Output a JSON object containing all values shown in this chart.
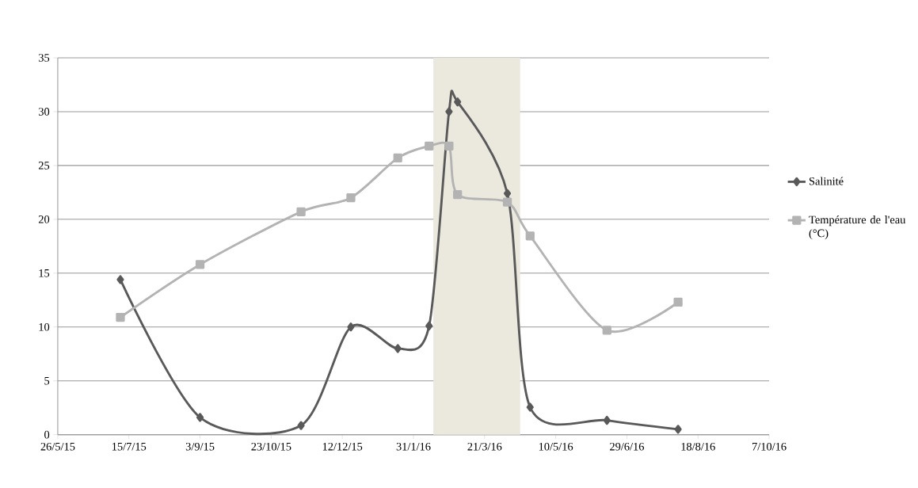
{
  "chart_data": {
    "type": "line",
    "x": [
      "2015-07-09",
      "2015-09-03",
      "2015-11-13",
      "2015-12-18",
      "2016-01-20",
      "2016-02-11",
      "2016-02-25",
      "2016-03-02",
      "2016-04-06",
      "2016-04-22",
      "2016-06-15",
      "2016-08-04"
    ],
    "series": [
      {
        "name": "Salinité",
        "color": "#595959",
        "marker": "diamond",
        "values": [
          14.4,
          1.6,
          0.85,
          10.0,
          8.0,
          10.1,
          30.0,
          30.9,
          22.4,
          2.55,
          1.33,
          0.5
        ]
      },
      {
        "name": "Température de l'eau (°C)",
        "color": "#b3b3b3",
        "marker": "square",
        "values": [
          10.9,
          15.8,
          20.7,
          22.0,
          25.7,
          26.8,
          26.8,
          22.3,
          21.6,
          18.45,
          9.7,
          12.3
        ]
      }
    ],
    "xlim": [
      "2015-05-26",
      "2016-10-07"
    ],
    "xticks": [
      {
        "value": "2015-05-26",
        "label": "26/5/15"
      },
      {
        "value": "2015-07-15",
        "label": "15/7/15"
      },
      {
        "value": "2015-09-03",
        "label": "3/9/15"
      },
      {
        "value": "2015-10-23",
        "label": "23/10/15"
      },
      {
        "value": "2015-12-12",
        "label": "12/12/15"
      },
      {
        "value": "2016-01-31",
        "label": "31/1/16"
      },
      {
        "value": "2016-03-21",
        "label": "21/3/16"
      },
      {
        "value": "2016-05-10",
        "label": "10/5/16"
      },
      {
        "value": "2016-06-29",
        "label": "29/6/16"
      },
      {
        "value": "2016-08-18",
        "label": "18/8/16"
      },
      {
        "value": "2016-10-07",
        "label": "7/10/16"
      }
    ],
    "ylim": [
      0,
      35
    ],
    "yticks": [
      0,
      5,
      10,
      15,
      20,
      25,
      30,
      35
    ],
    "bands": [
      {
        "axis": "x",
        "from": "2016-02-14",
        "to": "2016-04-15",
        "color": "#ebe8dd"
      }
    ],
    "grid": "y",
    "legend": "right",
    "line_style": "solid"
  }
}
